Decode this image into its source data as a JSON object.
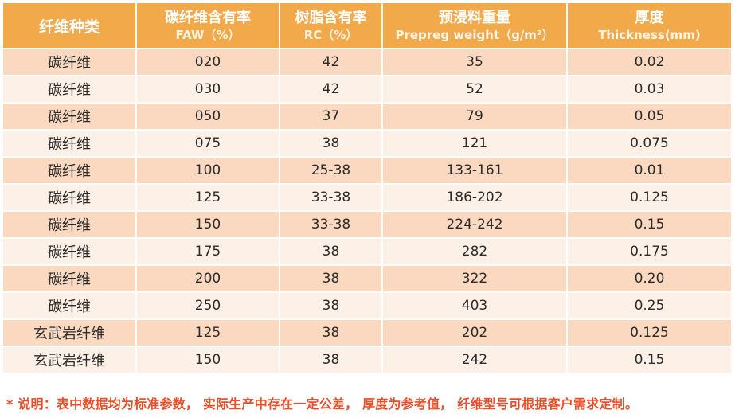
{
  "table": {
    "headers": [
      {
        "cn": "纤维种类",
        "en": ""
      },
      {
        "cn": "碳纤维含有率",
        "en": "FAW（%）"
      },
      {
        "cn": "树脂含有率",
        "en": "RC（%）"
      },
      {
        "cn": "预浸料重量",
        "en": "Prepreg weight（g/m²）"
      },
      {
        "cn": "厚度",
        "en": "Thickness(mm)"
      }
    ],
    "rows": [
      {
        "type": "碳纤维",
        "faw": "020",
        "rc": "42",
        "weight": "35",
        "thickness": "0.02"
      },
      {
        "type": "碳纤维",
        "faw": "030",
        "rc": "42",
        "weight": "52",
        "thickness": "0.03"
      },
      {
        "type": "碳纤维",
        "faw": "050",
        "rc": "37",
        "weight": "79",
        "thickness": "0.05"
      },
      {
        "type": "碳纤维",
        "faw": "075",
        "rc": "38",
        "weight": "121",
        "thickness": "0.075"
      },
      {
        "type": "碳纤维",
        "faw": "100",
        "rc": "25-38",
        "weight": "133-161",
        "thickness": "0.01"
      },
      {
        "type": "碳纤维",
        "faw": "125",
        "rc": "33-38",
        "weight": "186-202",
        "thickness": "0.125"
      },
      {
        "type": "碳纤维",
        "faw": "150",
        "rc": "33-38",
        "weight": "224-242",
        "thickness": "0.15"
      },
      {
        "type": "碳纤维",
        "faw": "175",
        "rc": "38",
        "weight": "282",
        "thickness": "0.175"
      },
      {
        "type": "碳纤维",
        "faw": "200",
        "rc": "38",
        "weight": "322",
        "thickness": "0.20"
      },
      {
        "type": "碳纤维",
        "faw": "250",
        "rc": "38",
        "weight": "403",
        "thickness": "0.25"
      },
      {
        "type": "玄武岩纤维",
        "faw": "125",
        "rc": "38",
        "weight": "202",
        "thickness": "0.125"
      },
      {
        "type": "玄武岩纤维",
        "faw": "150",
        "rc": "38",
        "weight": "242",
        "thickness": "0.15"
      }
    ]
  },
  "note": "* 说明：表中数据均为标准参数， 实际生产中存在一定公差， 厚度为参考值， 纤维型号可根据客户需求定制。",
  "colors": {
    "header_bg": "#f2a94a",
    "row_dark": "#fbd9c0",
    "row_light": "#fdf0e6",
    "note_text": "#e84f2a"
  }
}
